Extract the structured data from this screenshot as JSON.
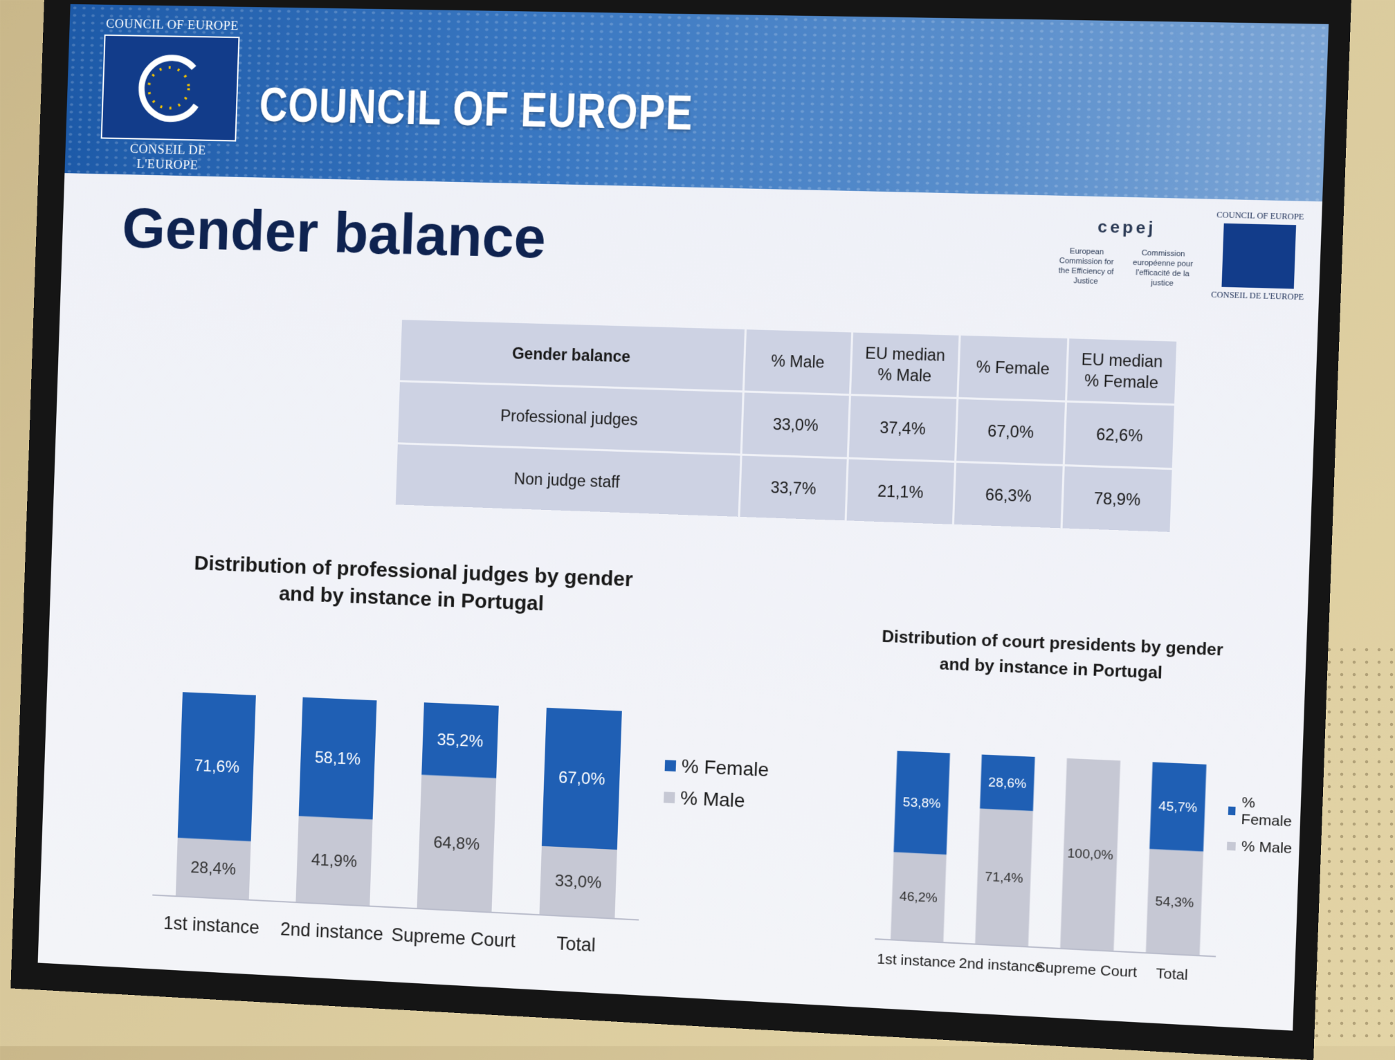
{
  "banner": {
    "logo_top": "COUNCIL OF EUROPE",
    "logo_bottom": "CONSEIL DE L'EUROPE",
    "title": "COUNCIL OF EUROPE",
    "cepej_name": "cepej",
    "cepej_en": "European Commission for the Efficiency of Justice",
    "cepej_fr": "Commission européenne pour l'efficacité de la justice",
    "small_top": "COUNCIL OF EUROPE",
    "small_bottom": "CONSEIL DE L'EUROPE"
  },
  "slide": {
    "title": "Gender balance"
  },
  "table": {
    "header": "Gender balance",
    "columns": [
      "% Male",
      "EU median % Male",
      "% Female",
      "EU median % Female"
    ],
    "rows": [
      {
        "label": "Professional judges",
        "values": [
          "33,0%",
          "37,4%",
          "67,0%",
          "62,6%"
        ]
      },
      {
        "label": "Non judge staff",
        "values": [
          "33,7%",
          "21,1%",
          "66,3%",
          "78,9%"
        ]
      }
    ]
  },
  "colors": {
    "female": "#1f5fb4",
    "male": "#c6c8d4"
  },
  "chart_data": [
    {
      "type": "bar",
      "stacked": true,
      "title": "Distribution of professional judges by gender and by instance in Portugal",
      "categories": [
        "1st instance",
        "2nd instance",
        "Supreme Court",
        "Total"
      ],
      "series": [
        {
          "name": "% Female",
          "values": [
            71.6,
            58.1,
            35.2,
            67.0
          ],
          "labels": [
            "71,6%",
            "58,1%",
            "35,2%",
            "67,0%"
          ]
        },
        {
          "name": "% Male",
          "values": [
            28.4,
            41.9,
            64.8,
            33.0
          ],
          "labels": [
            "28,4%",
            "41,9%",
            "64,8%",
            "33,0%"
          ]
        }
      ],
      "ylim": [
        0,
        100
      ],
      "legend": "right"
    },
    {
      "type": "bar",
      "stacked": true,
      "title": "Distribution of court presidents by gender and by instance in Portugal",
      "categories": [
        "1st instance",
        "2nd instance",
        "Supreme Court",
        "Total"
      ],
      "series": [
        {
          "name": "% Female",
          "values": [
            53.8,
            28.6,
            0,
            45.7
          ],
          "labels": [
            "53,8%",
            "28,6%",
            "",
            "45,7%"
          ]
        },
        {
          "name": "% Male",
          "values": [
            46.2,
            71.4,
            100.0,
            54.3
          ],
          "labels": [
            "46,2%",
            "71,4%",
            "100,0%",
            "54,3%"
          ]
        }
      ],
      "ylim": [
        0,
        100
      ],
      "legend": "right"
    }
  ]
}
